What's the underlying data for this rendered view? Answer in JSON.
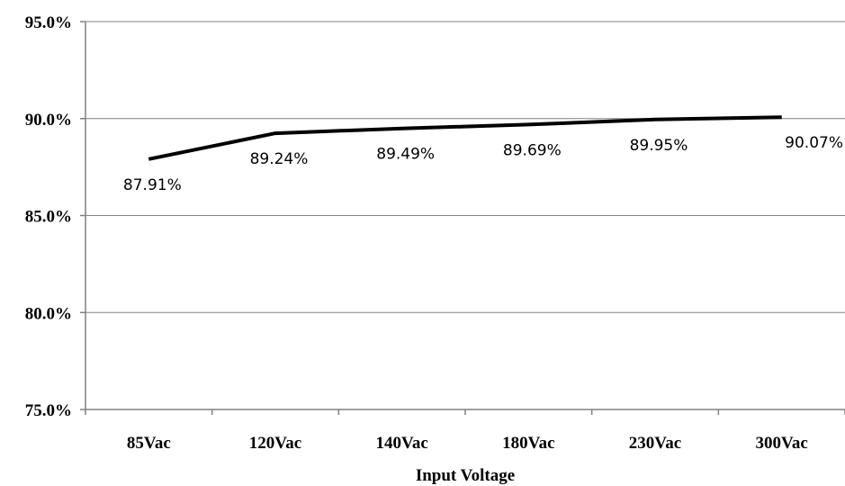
{
  "chart_data": {
    "type": "line",
    "title": "",
    "xlabel": "Input Voltage",
    "ylabel": "",
    "categories": [
      "85Vac",
      "120Vac",
      "140Vac",
      "180Vac",
      "230Vac",
      "300Vac"
    ],
    "series": [
      {
        "values": [
          87.91,
          89.24,
          89.49,
          89.69,
          89.95,
          90.07
        ],
        "data_labels": [
          "87.91%",
          "89.24%",
          "89.49%",
          "89.69%",
          "89.95%",
          "90.07%"
        ],
        "color": "#000000"
      }
    ],
    "ylim": [
      75.0,
      95.0
    ],
    "yticks": [
      75.0,
      80.0,
      85.0,
      90.0,
      95.0
    ],
    "ytick_labels": [
      "75.0%",
      "80.0%",
      "85.0%",
      "90.0%",
      "95.0%"
    ],
    "grid": "horizontal",
    "legend": "none"
  }
}
